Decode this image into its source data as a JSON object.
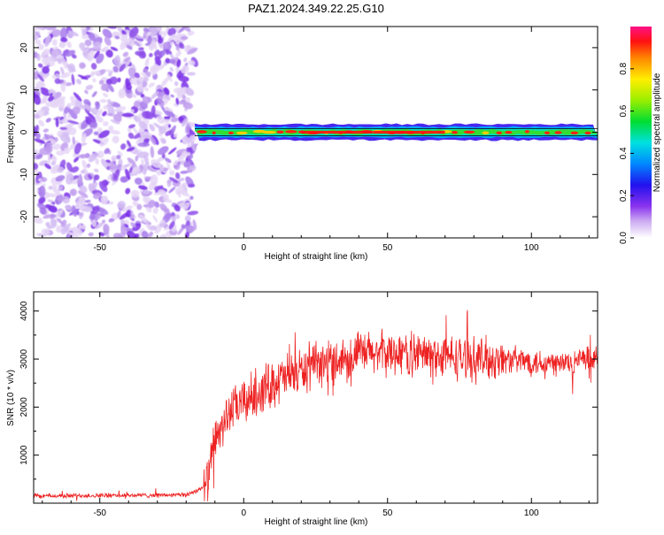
{
  "title": "PAZ1.2024.349.22.25.G10",
  "chart_data": [
    {
      "type": "heatmap",
      "xlabel": "Height of straight line (km)",
      "ylabel": "Frequency (Hz)",
      "xlim": [
        -73,
        123
      ],
      "ylim": [
        -25,
        25
      ],
      "xticks": [
        "-50",
        "0",
        "50",
        "100"
      ],
      "yticks": [
        "20",
        "10",
        "0",
        "-10",
        "-20"
      ],
      "colorbar": {
        "label": "Normalized spectral amplitude",
        "range": [
          0,
          1
        ],
        "ticks": [
          "0.0",
          "0.2",
          "0.4",
          "0.6",
          "0.8"
        ]
      },
      "noise_region_km": [
        -73,
        -17
      ],
      "signal_start_km": -17,
      "signal_frequency_hz": 0
    },
    {
      "type": "line",
      "xlabel": "Height of straight line (km)",
      "ylabel": "SNR (10 * v/v)",
      "xlim": [
        -73,
        123
      ],
      "ylim": [
        0,
        4400
      ],
      "xticks": [
        "-50",
        "0",
        "50",
        "100"
      ],
      "yticks": [
        "1000",
        "2000",
        "3000",
        "4000"
      ],
      "color": "#ee2222",
      "profile": {
        "x": [
          -73,
          -50,
          -20,
          -13,
          -10,
          -5,
          0,
          5,
          10,
          20,
          30,
          40,
          50,
          60,
          70,
          80,
          90,
          100,
          110,
          123
        ],
        "y": [
          150,
          160,
          170,
          350,
          1300,
          1900,
          2100,
          2300,
          2500,
          2750,
          2950,
          3100,
          3150,
          3100,
          3050,
          3000,
          3000,
          2950,
          2900,
          3000
        ]
      }
    }
  ]
}
